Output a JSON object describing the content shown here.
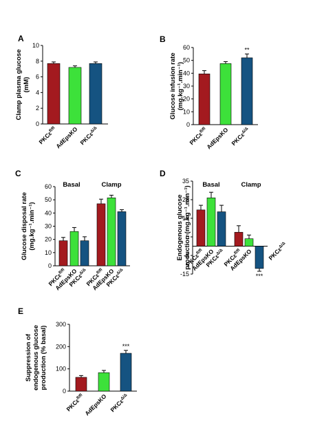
{
  "colors": {
    "pkc_flox": "#a31a1f",
    "adepsko": "#3de13a",
    "pkc_delta": "#155381",
    "axis": "#000000"
  },
  "chart_data": [
    {
      "id": "A",
      "type": "bar",
      "label": "A",
      "ylabel_lines": [
        "Clamp plasma glucose",
        "(mM)"
      ],
      "ylim": [
        0,
        10
      ],
      "yticks": [
        0,
        2,
        4,
        6,
        8,
        10
      ],
      "categories": [
        {
          "label": "PKCε",
          "sup": "fl/fl",
          "color": "pkc_flox"
        },
        {
          "label": "AdEpsKO",
          "sup": "",
          "color": "adepsko"
        },
        {
          "label": "PKCε",
          "sup": "Δ/Δ",
          "color": "pkc_delta"
        }
      ],
      "values": [
        7.7,
        7.2,
        7.7
      ],
      "errors": [
        0.2,
        0.2,
        0.2
      ],
      "annotations": [
        "",
        "",
        ""
      ]
    },
    {
      "id": "B",
      "type": "bar",
      "label": "B",
      "ylabel_lines": [
        "Glucose infusion rate",
        "(mg.kg⁻¹.min⁻¹)"
      ],
      "ylim": [
        0,
        60
      ],
      "yticks": [
        0,
        10,
        20,
        30,
        40,
        50,
        60
      ],
      "categories": [
        {
          "label": "PKCε",
          "sup": "fl/fl",
          "color": "pkc_flox"
        },
        {
          "label": "AdEpsKO",
          "sup": "",
          "color": "adepsko"
        },
        {
          "label": "PKCε",
          "sup": "Δ/Δ",
          "color": "pkc_delta"
        }
      ],
      "values": [
        39.5,
        47.5,
        52
      ],
      "errors": [
        2.5,
        1.5,
        3
      ],
      "annotations": [
        "",
        "",
        "**"
      ]
    },
    {
      "id": "C",
      "type": "bar",
      "label": "C",
      "ylabel_lines": [
        "Glucose disposal rate",
        "(mg.kg⁻¹.min⁻¹)"
      ],
      "ylim": [
        0,
        60
      ],
      "yticks": [
        0,
        10,
        20,
        30,
        40,
        50,
        60
      ],
      "groups": [
        "Basal",
        "Clamp"
      ],
      "categories": [
        {
          "label": "PKCε",
          "sup": "fl/fl",
          "color": "pkc_flox"
        },
        {
          "label": "AdEpsKO",
          "sup": "",
          "color": "adepsko"
        },
        {
          "label": "PKCε",
          "sup": "Δ/Δ",
          "color": "pkc_delta"
        }
      ],
      "series_values": [
        [
          19,
          26,
          19
        ],
        [
          47,
          51.5,
          41
        ]
      ],
      "series_errors": [
        [
          2.5,
          3,
          3
        ],
        [
          3.5,
          2,
          1.5
        ]
      ],
      "annotations": [
        [
          "",
          "",
          ""
        ],
        [
          "",
          "",
          ""
        ]
      ]
    },
    {
      "id": "D",
      "type": "bar",
      "label": "D",
      "ylabel_lines": [
        "Endogenous glucose",
        "production (mg.kg⁻¹.min⁻¹)"
      ],
      "ylim": [
        -15,
        35
      ],
      "yticks": [
        -15,
        -5,
        5,
        15,
        25,
        35
      ],
      "groups": [
        "Basal",
        "Clamp"
      ],
      "categories": [
        {
          "label": "PKCε",
          "sup": "fl/fl",
          "color": "pkc_flox"
        },
        {
          "label": "AdEpsKO",
          "sup": "",
          "color": "adepsko"
        },
        {
          "label": "PKCε",
          "sup": "Δ/Δ",
          "color": "pkc_delta"
        }
      ],
      "series_values": [
        [
          19.5,
          26,
          18.5
        ],
        [
          7.5,
          4,
          -12
        ]
      ],
      "series_errors": [
        [
          2.5,
          3,
          3.5
        ],
        [
          3.5,
          2,
          1.5
        ]
      ],
      "annotations": [
        [
          "",
          "",
          ""
        ],
        [
          "",
          "",
          "***"
        ]
      ]
    },
    {
      "id": "E",
      "type": "bar",
      "label": "E",
      "ylabel_lines": [
        "Suppression of",
        "endogenous glucose",
        "production (% basal)"
      ],
      "ylim": [
        0,
        300
      ],
      "yticks": [
        0,
        100,
        200,
        300
      ],
      "categories": [
        {
          "label": "PKCε",
          "sup": "fl/fl",
          "color": "pkc_flox"
        },
        {
          "label": "AdEpsKO",
          "sup": "",
          "color": "adepsko"
        },
        {
          "label": "PKCε",
          "sup": "Δ/Δ",
          "color": "pkc_delta"
        }
      ],
      "values": [
        62,
        83,
        170
      ],
      "errors": [
        8,
        10,
        13
      ],
      "annotations": [
        "",
        "",
        "***"
      ]
    }
  ]
}
